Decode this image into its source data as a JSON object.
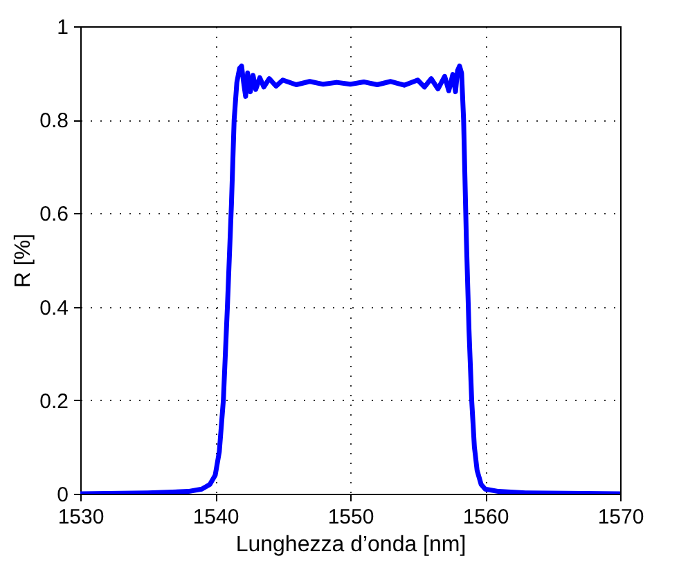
{
  "chart_data": {
    "type": "line",
    "xlabel": "Lunghezza d’onda [nm]",
    "ylabel": "R [%]",
    "xlim": [
      1530,
      1570
    ],
    "ylim": [
      0,
      1
    ],
    "xticks": [
      1530,
      1540,
      1550,
      1560,
      1570
    ],
    "yticks": [
      0,
      0.2,
      0.4,
      0.6,
      0.8,
      1
    ],
    "grid": true,
    "line_style": "solid",
    "marker": "none",
    "x": [
      1530,
      1535,
      1538,
      1539,
      1539.6,
      1540,
      1540.3,
      1540.6,
      1540.9,
      1541.2,
      1541.4,
      1541.6,
      1541.8,
      1541.95,
      1542.1,
      1542.25,
      1542.4,
      1542.6,
      1542.8,
      1543.0,
      1543.3,
      1543.6,
      1544,
      1544.5,
      1545,
      1546,
      1547,
      1548,
      1549,
      1550,
      1551,
      1552,
      1553,
      1554,
      1555,
      1555.5,
      1556,
      1556.5,
      1557,
      1557.3,
      1557.6,
      1557.8,
      1557.95,
      1558.1,
      1558.25,
      1558.4,
      1558.6,
      1558.8,
      1559.0,
      1559.2,
      1559.4,
      1559.7,
      1560,
      1561,
      1563,
      1566,
      1570
    ],
    "series": [
      {
        "color": "#0000ff",
        "values": [
          0,
          0.002,
          0.005,
          0.01,
          0.02,
          0.04,
          0.09,
          0.2,
          0.4,
          0.62,
          0.8,
          0.88,
          0.91,
          0.915,
          0.88,
          0.85,
          0.9,
          0.86,
          0.895,
          0.865,
          0.89,
          0.87,
          0.888,
          0.872,
          0.885,
          0.875,
          0.882,
          0.876,
          0.88,
          0.876,
          0.881,
          0.875,
          0.882,
          0.874,
          0.885,
          0.87,
          0.888,
          0.866,
          0.893,
          0.862,
          0.897,
          0.86,
          0.905,
          0.915,
          0.9,
          0.8,
          0.55,
          0.35,
          0.2,
          0.1,
          0.05,
          0.02,
          0.01,
          0.005,
          0.002,
          0.001,
          0
        ]
      }
    ]
  }
}
